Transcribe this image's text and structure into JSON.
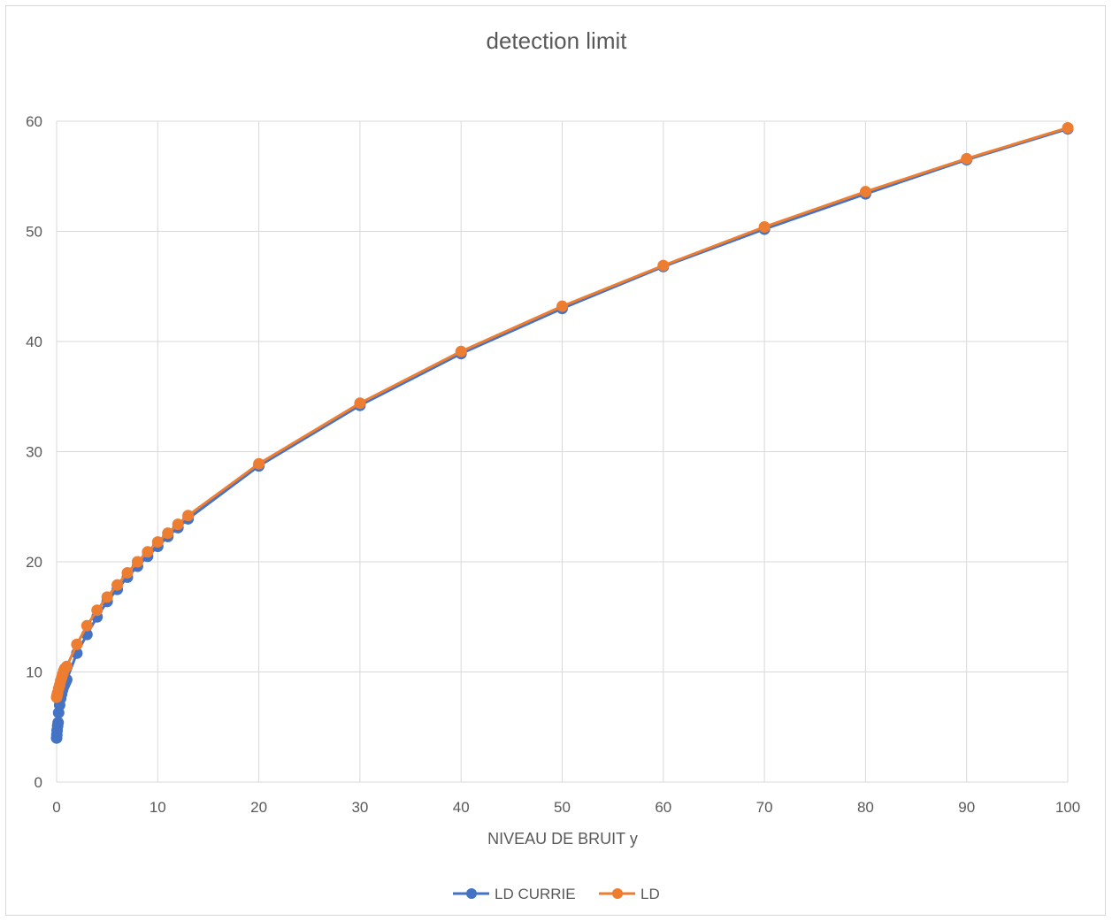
{
  "colors": {
    "ld_currie": "#4472c4",
    "ld": "#ed7d31",
    "grid": "#d9d9d9",
    "text": "#595959"
  },
  "chart_data": {
    "type": "scatter",
    "title": "detection limit",
    "xlabel": "NIVEAU DE BRUIT y",
    "ylabel": "",
    "xlim": [
      0,
      100
    ],
    "ylim": [
      0,
      60
    ],
    "x_ticks": [
      0,
      10,
      20,
      30,
      40,
      50,
      60,
      70,
      80,
      90,
      100
    ],
    "y_ticks": [
      0,
      10,
      20,
      30,
      40,
      50,
      60
    ],
    "grid": true,
    "legend_position": "bottom",
    "markers": true,
    "lines": true,
    "series": [
      {
        "name": "LD CURRIE",
        "points": [
          [
            0,
            4.0
          ],
          [
            0.02,
            4.3
          ],
          [
            0.05,
            4.7
          ],
          [
            0.1,
            5.1
          ],
          [
            0.15,
            5.4
          ],
          [
            0.2,
            6.3
          ],
          [
            0.3,
            7.0
          ],
          [
            0.4,
            7.6
          ],
          [
            0.5,
            8.0
          ],
          [
            0.6,
            8.4
          ],
          [
            0.7,
            8.7
          ],
          [
            0.8,
            8.9
          ],
          [
            0.9,
            9.1
          ],
          [
            1,
            9.3
          ],
          [
            2,
            11.7
          ],
          [
            3,
            13.4
          ],
          [
            4,
            15.0
          ],
          [
            5,
            16.4
          ],
          [
            6,
            17.5
          ],
          [
            7,
            18.6
          ],
          [
            8,
            19.6
          ],
          [
            9,
            20.5
          ],
          [
            10,
            21.4
          ],
          [
            11,
            22.3
          ],
          [
            12,
            23.1
          ],
          [
            13,
            23.9
          ],
          [
            20,
            28.7
          ],
          [
            30,
            34.2
          ],
          [
            40,
            38.9
          ],
          [
            50,
            43.0
          ],
          [
            60,
            46.8
          ],
          [
            70,
            50.2
          ],
          [
            80,
            53.4
          ],
          [
            90,
            56.5
          ],
          [
            100,
            59.3
          ]
        ]
      },
      {
        "name": "LD",
        "points": [
          [
            0,
            7.7
          ],
          [
            0.05,
            7.9
          ],
          [
            0.1,
            8.1
          ],
          [
            0.2,
            8.5
          ],
          [
            0.3,
            8.8
          ],
          [
            0.4,
            9.2
          ],
          [
            0.5,
            9.5
          ],
          [
            0.6,
            9.8
          ],
          [
            0.7,
            10.1
          ],
          [
            0.8,
            10.3
          ],
          [
            1,
            10.5
          ],
          [
            2,
            12.5
          ],
          [
            3,
            14.2
          ],
          [
            4,
            15.6
          ],
          [
            5,
            16.8
          ],
          [
            6,
            17.9
          ],
          [
            7,
            19.0
          ],
          [
            8,
            20.0
          ],
          [
            9,
            20.9
          ],
          [
            10,
            21.8
          ],
          [
            11,
            22.6
          ],
          [
            12,
            23.4
          ],
          [
            13,
            24.2
          ],
          [
            20,
            28.9
          ],
          [
            30,
            34.4
          ],
          [
            40,
            39.1
          ],
          [
            50,
            43.2
          ],
          [
            60,
            46.9
          ],
          [
            70,
            50.4
          ],
          [
            80,
            53.6
          ],
          [
            90,
            56.6
          ],
          [
            100,
            59.4
          ]
        ]
      }
    ]
  }
}
